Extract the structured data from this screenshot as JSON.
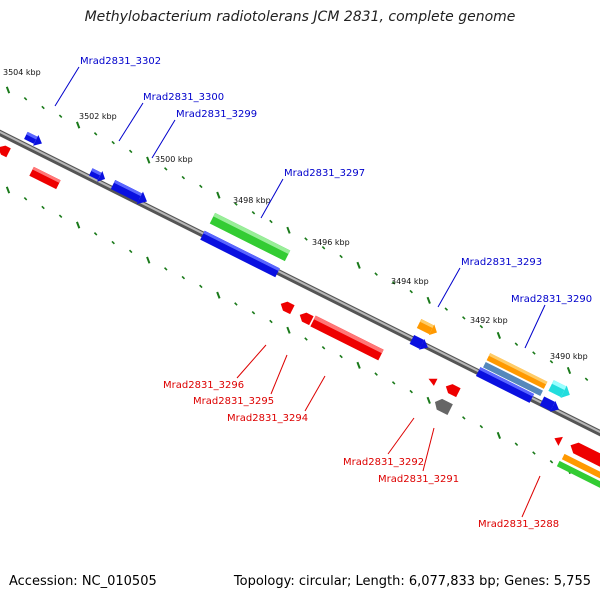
{
  "title": "Methylobacterium radiotolerans JCM 2831, complete genome",
  "footer": {
    "accession": "Accession: NC_010505",
    "summary": "Topology: circular; Length: 6,077,833 bp; Genes: 5,755"
  },
  "colors": {
    "forward_label": "#0000cc",
    "reverse_label": "#dd0000",
    "tick": "#1a7a1a",
    "backbone": "#777777",
    "blue": "#0a10e0",
    "red": "#ee0000",
    "green": "#33cc33",
    "orange": "#ff9900",
    "cyan": "#22dddd",
    "gray": "#666666",
    "steel": "#5588bb"
  },
  "scale_labels": [
    "3504 kbp",
    "3502 kbp",
    "3500 kbp",
    "3498 kbp",
    "3496 kbp",
    "3494 kbp",
    "3492 kbp",
    "3490 kbp"
  ],
  "forward_genes": [
    {
      "label": "Mrad2831_3302",
      "icon": "blue"
    },
    {
      "label": "Mrad2831_3300",
      "icon": "blue"
    },
    {
      "label": "Mrad2831_3299",
      "icon": "blue"
    },
    {
      "label": "Mrad2831_3297",
      "icon": "green"
    },
    {
      "label": "Mrad2831_3293",
      "icon": "orange"
    },
    {
      "label": "Mrad2831_3290",
      "icon": "cyan"
    }
  ],
  "reverse_genes": [
    {
      "label": "Mrad2831_3296",
      "icon": "red"
    },
    {
      "label": "Mrad2831_3295",
      "icon": "red"
    },
    {
      "label": "Mrad2831_3294",
      "icon": "red"
    },
    {
      "label": "Mrad2831_3292",
      "icon": "red"
    },
    {
      "label": "Mrad2831_3291",
      "icon": "gray"
    },
    {
      "label": "Mrad2831_3288",
      "icon": "red"
    }
  ]
}
